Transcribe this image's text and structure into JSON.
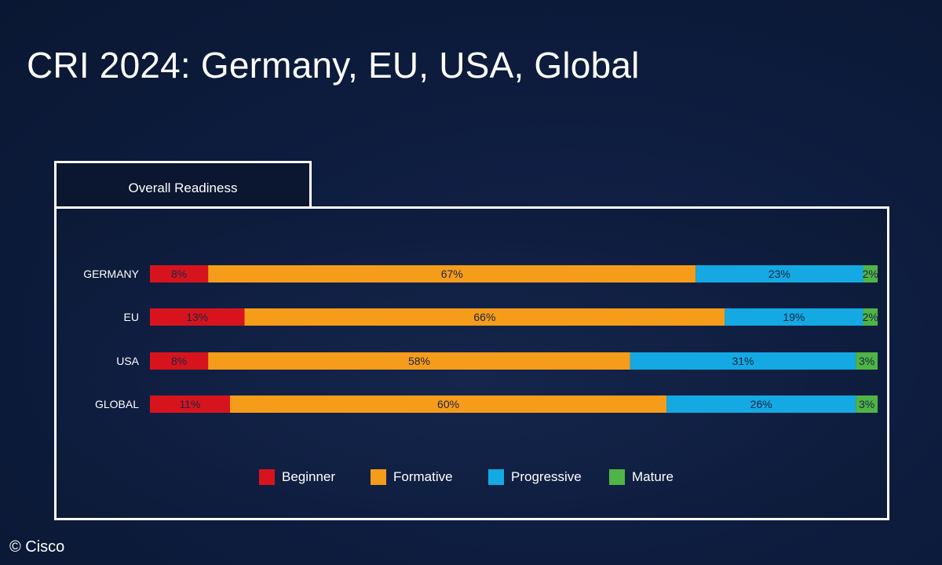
{
  "slide": {
    "title": "CRI 2024: Germany, EU, USA, Global",
    "copyright": "© Cisco"
  },
  "tab": {
    "label": "Overall Readiness"
  },
  "chart_data": {
    "type": "bar",
    "orientation": "horizontal",
    "stacked": true,
    "categories": [
      "GERMANY",
      "EU",
      "USA",
      "GLOBAL"
    ],
    "series": [
      {
        "name": "Beginner",
        "values": [
          8,
          13,
          8,
          11
        ],
        "color": "#d7141e"
      },
      {
        "name": "Formative",
        "values": [
          67,
          66,
          58,
          60
        ],
        "color": "#f59c1a"
      },
      {
        "name": "Progressive",
        "values": [
          23,
          19,
          31,
          26
        ],
        "color": "#14a9e3"
      },
      {
        "name": "Mature",
        "values": [
          2,
          2,
          3,
          3
        ],
        "color": "#4fb447"
      }
    ],
    "value_suffix": "%",
    "legend_position": "bottom",
    "grid": false
  }
}
